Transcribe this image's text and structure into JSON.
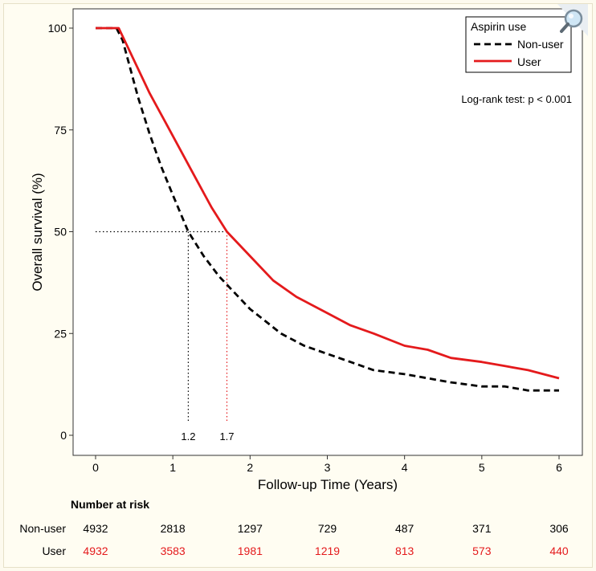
{
  "chart_data": {
    "type": "line",
    "xlabel": "Follow-up Time (Years)",
    "ylabel": "Overall survival (%)",
    "xlim": [
      0,
      6
    ],
    "ylim": [
      0,
      100
    ],
    "x_ticks": [
      0,
      1,
      2,
      3,
      4,
      5,
      6
    ],
    "y_ticks": [
      0,
      25,
      50,
      75,
      100
    ],
    "grid": false,
    "legend": {
      "title": "Aspirin use",
      "position": "top-right"
    },
    "annotation": "Log-rank test: p < 0.001",
    "series": [
      {
        "name": "Non-user",
        "color": "#000000",
        "style": "dashed",
        "x": [
          0,
          0.27,
          0.35,
          0.45,
          0.55,
          0.7,
          0.85,
          1.0,
          1.2,
          1.4,
          1.6,
          1.8,
          2.0,
          2.2,
          2.4,
          2.7,
          3.0,
          3.3,
          3.6,
          4.0,
          4.3,
          4.6,
          5.0,
          5.3,
          5.6,
          6.0
        ],
        "y": [
          100,
          100,
          97,
          90,
          83,
          74,
          66,
          59,
          50,
          44,
          39,
          35,
          31,
          28,
          25,
          22,
          20,
          18,
          16,
          15,
          14,
          13,
          12,
          12,
          11,
          11
        ]
      },
      {
        "name": "User",
        "color": "#e41a1c",
        "style": "solid",
        "x": [
          0,
          0.3,
          0.4,
          0.5,
          0.7,
          0.9,
          1.1,
          1.3,
          1.5,
          1.7,
          2.0,
          2.3,
          2.6,
          3.0,
          3.3,
          3.6,
          4.0,
          4.3,
          4.6,
          5.0,
          5.3,
          5.6,
          6.0
        ],
        "y": [
          100,
          100,
          96,
          92,
          84,
          77,
          70,
          63,
          56,
          50,
          44,
          38,
          34,
          30,
          27,
          25,
          22,
          21,
          19,
          18,
          17,
          16,
          14
        ]
      }
    ],
    "median_lines": [
      {
        "series": "Non-user",
        "x": 1.2,
        "label": "1.2",
        "color": "#000000"
      },
      {
        "series": "User",
        "x": 1.7,
        "label": "1.7",
        "color": "#e41a1c"
      }
    ]
  },
  "risk_table": {
    "title": "Number at risk",
    "times": [
      0,
      1,
      2,
      3,
      4,
      5,
      6
    ],
    "rows": [
      {
        "label": "Non-user",
        "color": "#000000",
        "values": [
          "4932",
          "2818",
          "1297",
          "729",
          "487",
          "371",
          "306"
        ]
      },
      {
        "label": "User",
        "color": "#e41a1c",
        "values": [
          "4932",
          "3583",
          "1981",
          "1219",
          "813",
          "573",
          "440"
        ]
      }
    ]
  }
}
